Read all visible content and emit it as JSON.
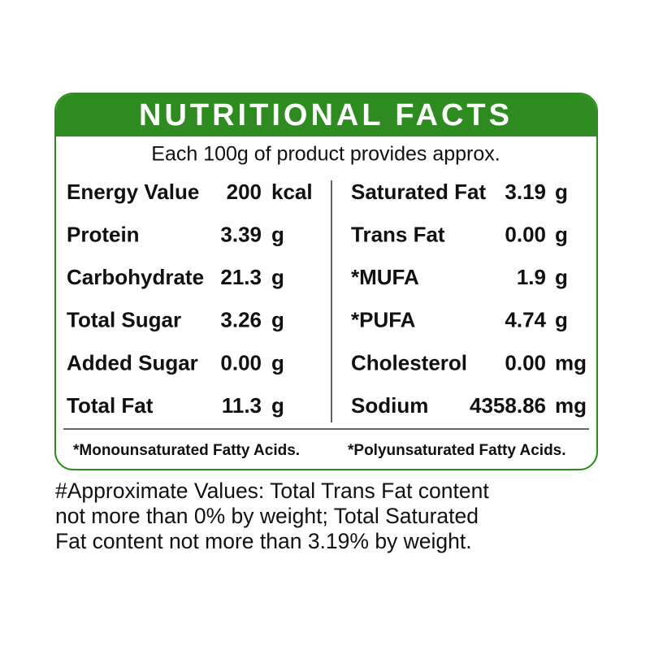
{
  "header": {
    "title": "NUTRITIONAL FACTS",
    "subtitle": "Each 100g of product provides approx."
  },
  "table": {
    "left": [
      [
        "Energy Value",
        "200",
        "kcal"
      ],
      [
        "Protein",
        "3.39",
        "g"
      ],
      [
        "Carbohydrate",
        "21.3",
        "g"
      ],
      [
        "Total Sugar",
        "3.26",
        "g"
      ],
      [
        "Added Sugar",
        "0.00",
        "g"
      ],
      [
        "Total Fat",
        "11.3",
        "g"
      ]
    ],
    "right": [
      [
        "Saturated Fat",
        "3.19",
        "g"
      ],
      [
        "Trans Fat",
        "0.00",
        "g"
      ],
      [
        "*MUFA",
        "1.9",
        "g"
      ],
      [
        "*PUFA",
        "4.74",
        "g"
      ],
      [
        "Cholesterol",
        "0.00",
        "mg"
      ],
      [
        "Sodium",
        "4358.86",
        "mg"
      ]
    ]
  },
  "footnotes": [
    "*Monounsaturated Fatty Acids.",
    "*Polyunsaturated Fatty Acids."
  ],
  "note": [
    "#Approximate Values: Total Trans Fat content",
    "not more than 0% by weight; Total Saturated",
    "Fat content not more than 3.19% by weight."
  ]
}
